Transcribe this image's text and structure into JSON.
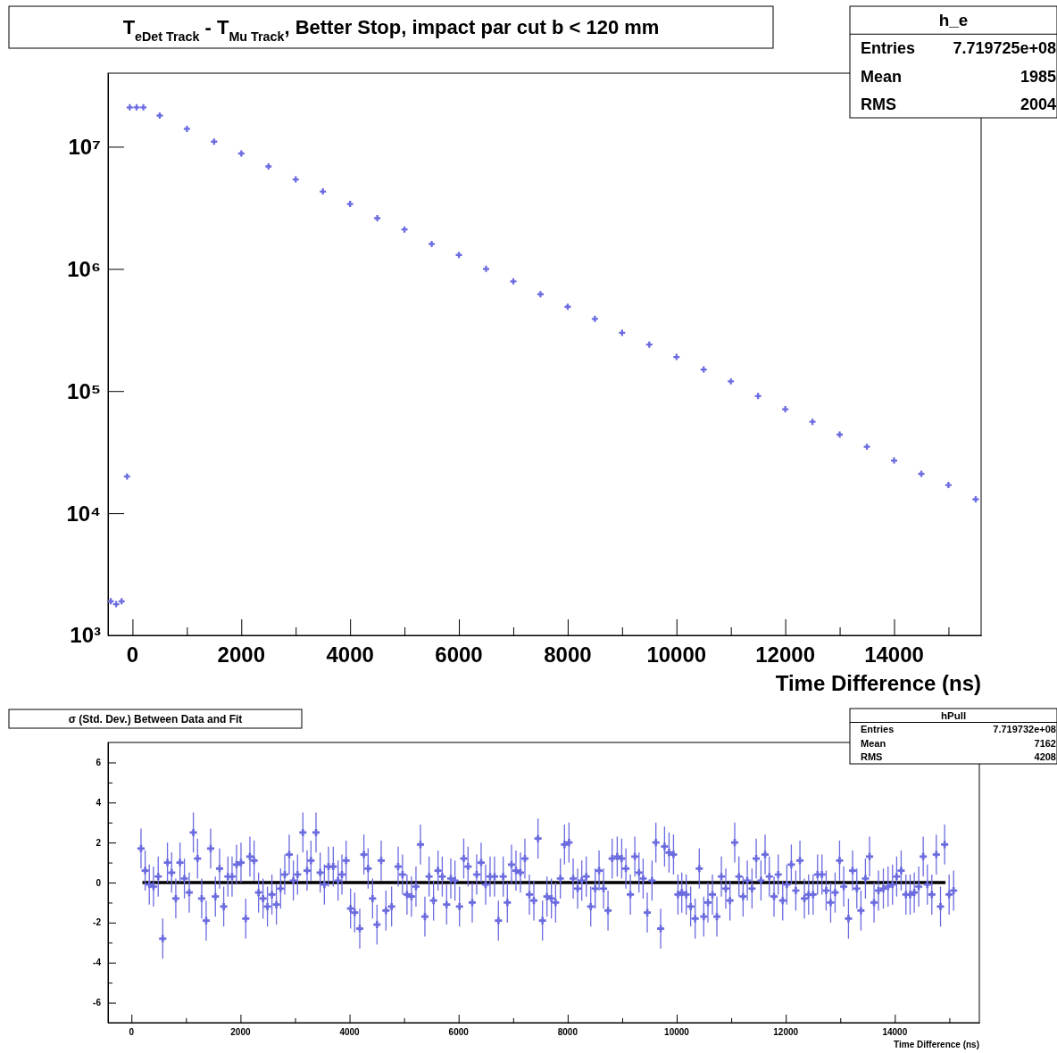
{
  "chart_data": [
    {
      "type": "scatter",
      "title": "T$_{eDet Track}$ - T$_{Mu Track}$, Better Stop, impact par cut b < 120 mm",
      "xlabel": "Time Difference (ns)",
      "log": true,
      "marker": "cross",
      "annotations": [
        "h_e",
        "Entries",
        "7.719725e+08",
        "Mean",
        "1985",
        "RMS",
        "2004"
      ],
      "xlim": [
        -450,
        15600
      ],
      "xticks": [
        0,
        {
          "value": 1000,
          "label": null
        },
        2000,
        {
          "value": 3000,
          "label": null
        },
        4000,
        {
          "value": 5000,
          "label": null
        },
        6000,
        {
          "value": 7000,
          "label": null
        },
        8000,
        {
          "value": 9000,
          "label": null
        },
        10000,
        {
          "value": 11000,
          "label": null
        },
        12000,
        {
          "value": 13000,
          "label": null
        },
        14000,
        {
          "value": 15000,
          "label": null
        }
      ],
      "ylim": [
        1000,
        40000000
      ],
      "yticks": [
        {
          "value": 1000,
          "label": "10³"
        },
        {
          "value": 10000,
          "label": "10⁴"
        },
        {
          "value": 100000,
          "label": "10⁵"
        },
        {
          "value": 1000000,
          "label": "10⁶"
        },
        {
          "value": 10000000,
          "label": "10⁷"
        }
      ],
      "series": [
        {
          "color": "#6b6be0",
          "x": [
            -400,
            -300,
            -200,
            -100,
            -50,
            75,
            200,
            500,
            1000,
            1500,
            2000,
            2500,
            3000,
            3500,
            4000,
            4500,
            5000,
            5500,
            6000,
            6500,
            7000,
            7500,
            8000,
            8500,
            9000,
            9500,
            10000,
            10500,
            11000,
            11500,
            12000,
            12500,
            13000,
            13500,
            14000,
            14500,
            15000,
            15500
          ],
          "values": [
            1900,
            1800,
            1900,
            20000,
            21000000,
            21000000,
            21000000,
            18000000,
            14000000,
            11000000,
            8800000,
            6900000,
            5400000,
            4300000,
            3400000,
            2600000,
            2100000,
            1600000,
            1300000,
            1000000,
            790000,
            620000,
            490000,
            390000,
            300000,
            240000,
            190000,
            150000,
            120000,
            91000,
            71000,
            56000,
            44000,
            35000,
            27000,
            21000,
            17000,
            13000
          ]
        }
      ]
    },
    {
      "type": "scatter",
      "title": "σ (Std. Dev.) Between Data and Fit",
      "xlabel": "Time Difference (ns)",
      "marker": "cross",
      "annotations": [
        "hPull",
        "Entries",
        "7.719732e+08",
        "Mean",
        "7162",
        "RMS",
        "4208"
      ],
      "xlim": [
        -430,
        15550
      ],
      "xticks": [
        0,
        {
          "value": 1000,
          "label": null
        },
        2000,
        {
          "value": 3000,
          "label": null
        },
        4000,
        {
          "value": 5000,
          "label": null
        },
        6000,
        {
          "value": 7000,
          "label": null
        },
        8000,
        {
          "value": 9000,
          "label": null
        },
        10000,
        {
          "value": 11000,
          "label": null
        },
        12000,
        {
          "value": 13000,
          "label": null
        },
        14000,
        {
          "value": 15000,
          "label": null
        }
      ],
      "ylim": [
        -7,
        7
      ],
      "yticks": [
        -6,
        {
          "value": -5,
          "label": null
        },
        -4,
        {
          "value": -3,
          "label": null
        },
        -2,
        {
          "value": -1,
          "label": null
        },
        0,
        {
          "value": 1,
          "label": null
        },
        2,
        {
          "value": 3,
          "label": null
        },
        4,
        {
          "value": 5,
          "label": null
        },
        6
      ],
      "series": [
        {
          "type": "scatter",
          "color": "#6b6be0",
          "x": [
            175,
            251,
            327,
            404,
            491,
            573,
            660,
            737,
            813,
            890,
            971,
            1059,
            1135,
            1212,
            1288,
            1370,
            1452,
            1539,
            1616,
            1692,
            1769,
            1845,
            1927,
            2009,
            2096,
            2172,
            2249,
            2331,
            2413,
            2494,
            2576,
            2658,
            2735,
            2811,
            2893,
            2969,
            3046,
            3144,
            3221,
            3292,
            3385,
            3461,
            3538,
            3614,
            3701,
            3789,
            3860,
            3936,
            4018,
            4094,
            4187,
            4263,
            4340,
            4422,
            4503,
            4580,
            4667,
            4771,
            4891,
            4971,
            5053,
            5135,
            5218,
            5300,
            5382,
            5458,
            5540,
            5622,
            5700,
            5780,
            5857,
            5933,
            6016,
            6094,
            6173,
            6250,
            6331,
            6413,
            6495,
            6577,
            6659,
            6730,
            6818,
            6894,
            6970,
            7052,
            7134,
            7216,
            7298,
            7380,
            7456,
            7538,
            7620,
            7702,
            7779,
            7866,
            7942,
            8024,
            8101,
            8183,
            8259,
            8341,
            8423,
            8505,
            8576,
            8658,
            8740,
            8816,
            8909,
            8991,
            9068,
            9150,
            9232,
            9308,
            9384,
            9460,
            9547,
            9618,
            9706,
            9777,
            9859,
            9941,
            10023,
            10093,
            10174,
            10256,
            10338,
            10414,
            10496,
            10573,
            10655,
            10737,
            10819,
            10900,
            10977,
            11064,
            11141,
            11217,
            11294,
            11381,
            11458,
            11545,
            11621,
            11698,
            11785,
            11862,
            11944,
            12020,
            12102,
            12184,
            12260,
            12342,
            12419,
            12501,
            12583,
            12664,
            12741,
            12823,
            12905,
            12987,
            13063,
            13150,
            13226,
            13303,
            13379,
            13461,
            13537,
            13619,
            13700,
            13790,
            13876,
            13958,
            14034,
            14116,
            14204,
            14281,
            14357,
            14439,
            14521,
            14597,
            14679,
            14761,
            14838,
            14914,
            14996,
            15078
          ],
          "values": [
            1.7,
            0.6,
            -0.1,
            -0.2,
            0.3,
            -2.8,
            1.0,
            0.5,
            -0.8,
            1.0,
            0.2,
            -0.5,
            2.5,
            1.2,
            -0.8,
            -1.9,
            1.7,
            -0.7,
            0.7,
            -1.2,
            0.3,
            0.3,
            0.9,
            1.0,
            -1.8,
            1.3,
            1.1,
            -0.5,
            -0.8,
            -1.2,
            -0.6,
            -1.1,
            -0.3,
            0.4,
            1.4,
            0.1,
            0.4,
            2.5,
            0.6,
            1.1,
            2.5,
            0.5,
            -0.1,
            0.8,
            0.8,
            0.1,
            0.4,
            1.1,
            -1.3,
            -1.5,
            -2.3,
            1.4,
            0.7,
            -0.8,
            -2.1,
            1.1,
            -1.4,
            -1.2,
            0.8,
            0.4,
            -0.6,
            -0.7,
            -0.2,
            1.9,
            -1.7,
            0.3,
            -0.9,
            0.6,
            0.3,
            -1.1,
            0.2,
            0.1,
            -1.2,
            1.2,
            0.8,
            -1.0,
            0.4,
            1.0,
            -0.1,
            0.3,
            0.3,
            -1.9,
            0.3,
            -1.0,
            0.9,
            0.6,
            0.5,
            1.2,
            -0.6,
            -0.9,
            2.2,
            -1.9,
            -0.7,
            -0.8,
            -1.0,
            0.2,
            1.9,
            2.0,
            0.2,
            -0.3,
            0.1,
            0.3,
            -1.2,
            -0.3,
            0.6,
            -0.3,
            -1.4,
            1.2,
            1.3,
            1.2,
            0.7,
            -0.6,
            1.3,
            0.5,
            0.2,
            -1.5,
            0.1,
            2.0,
            -2.3,
            1.8,
            1.5,
            1.4,
            -0.6,
            -0.5,
            -0.6,
            -1.2,
            -1.8,
            0.7,
            -1.7,
            -1.0,
            -0.6,
            -1.7,
            0.3,
            -0.3,
            -0.9,
            2.0,
            0.3,
            -0.7,
            0.1,
            -0.3,
            1.2,
            0.1,
            1.4,
            0.3,
            -0.7,
            0.4,
            -0.9,
            -0.1,
            0.9,
            -0.4,
            1.1,
            -0.8,
            -0.6,
            -0.6,
            0.4,
            0.4,
            -0.4,
            -1.0,
            -0.5,
            1.1,
            -0.2,
            -1.8,
            0.6,
            -0.3,
            -1.4,
            0.2,
            1.3,
            -1.0,
            -0.4,
            -0.3,
            -0.2,
            -0.1,
            0.3,
            0.6,
            -0.6,
            -0.6,
            -0.5,
            -0.2,
            1.3,
            -0.1,
            -0.6,
            1.4,
            -1.2,
            1.9,
            -0.6,
            -0.4
          ],
          "errors": [
            1,
            1,
            1,
            1,
            1,
            1,
            1,
            1,
            1,
            1,
            1,
            1,
            1,
            1,
            1,
            1,
            1,
            1,
            1,
            1,
            1,
            1,
            1,
            1,
            1,
            1,
            1,
            1,
            1,
            1,
            1,
            1,
            1,
            1,
            1,
            1,
            1,
            1,
            1,
            1,
            1,
            1,
            1,
            1,
            1,
            1,
            1,
            1,
            1,
            1,
            1,
            1,
            1,
            1,
            1,
            1,
            1,
            1,
            1,
            1,
            1,
            1,
            1,
            1,
            1,
            1,
            1,
            1,
            1,
            1,
            1,
            1,
            1,
            1,
            1,
            1,
            1,
            1,
            1,
            1,
            1,
            1,
            1,
            1,
            1,
            1,
            1,
            1,
            1,
            1,
            1,
            1,
            1,
            1,
            1,
            1,
            1,
            1,
            1,
            1,
            1,
            1,
            1,
            1,
            1,
            1,
            1,
            1,
            1,
            1,
            1,
            1,
            1,
            1,
            1,
            1,
            1,
            1,
            1,
            1,
            1,
            1,
            1,
            1,
            1,
            1,
            1,
            1,
            1,
            1,
            1,
            1,
            1,
            1,
            1,
            1,
            1,
            1,
            1,
            1,
            1,
            1,
            1,
            1,
            1,
            1,
            1,
            1,
            1,
            1,
            1,
            1,
            1,
            1,
            1,
            1,
            1,
            1,
            1,
            1,
            1,
            1,
            1,
            1,
            1,
            1,
            1,
            1,
            1,
            1,
            1,
            1,
            1,
            1,
            1,
            1,
            1,
            1,
            1,
            1,
            1,
            1,
            1,
            1,
            1,
            1
          ]
        },
        {
          "type": "line",
          "marker": "none",
          "color": "#000000",
          "x": [
            200,
            14930
          ],
          "values": [
            0,
            0
          ]
        }
      ]
    }
  ]
}
